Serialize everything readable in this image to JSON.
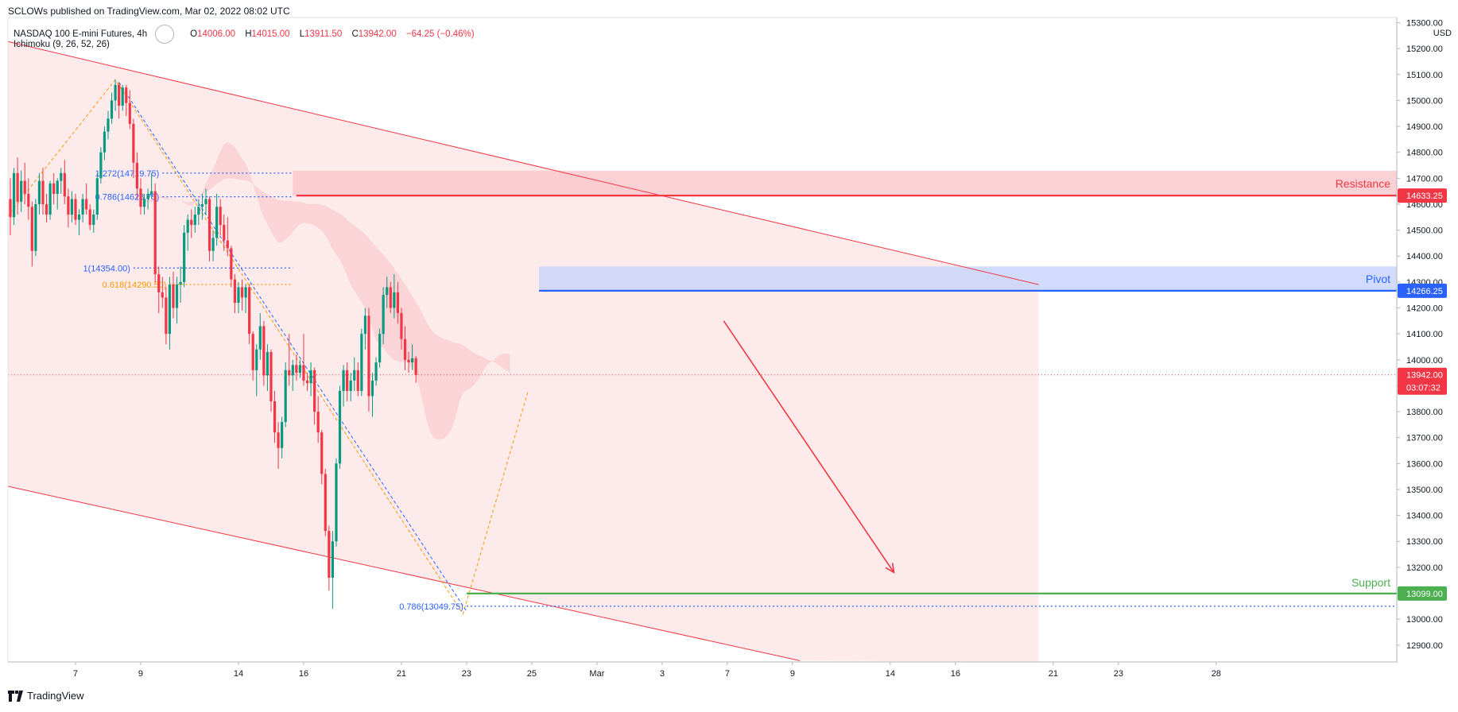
{
  "header": {
    "credit": "SCLOWs published on TradingView.com, Mar 02, 2022 08:02 UTC"
  },
  "legend": {
    "symbol": "NASDAQ 100 E-mini Futures, 4h",
    "indicator": "Ichimoku (9, 26, 52, 26)",
    "open_label": "O",
    "open": "14006.00",
    "high_label": "H",
    "high": "14015.00",
    "low_label": "L",
    "low": "13911.50",
    "close_label": "C",
    "close": "13942.00",
    "change": "−64.25 (−0.46%)"
  },
  "footer": {
    "brand": "TradingView",
    "logo_icon": "tradingview-logo-icon"
  },
  "colors": {
    "up": "#089981",
    "down": "#f23645",
    "channel": "#f23645",
    "channel_fill": "#fde7e8",
    "resistance": "#f23645",
    "pivot": "#2962ff",
    "support": "#4caf50",
    "fib_blue": "#2962ff",
    "fib_orange": "#ff9800"
  },
  "chart_data": {
    "type": "candlestick",
    "currency": "USD",
    "ylim": [
      12835,
      15320
    ],
    "y_ticks": [
      12900,
      13000,
      13100,
      13200,
      13300,
      13400,
      13500,
      13600,
      13700,
      13800,
      13900,
      14000,
      14100,
      14200,
      14300,
      14400,
      14500,
      14600,
      14700,
      14800,
      14900,
      15000,
      15100,
      15200,
      15300
    ],
    "y_tick_labels": [
      "12900.00",
      "13000.00",
      "13100.00",
      "13200.00",
      "13300.00",
      "13400.00",
      "13500.00",
      "13600.00",
      "13700.00",
      "13800.00",
      "13900.00",
      "14000.00",
      "14100.00",
      "14200.00",
      "14300.00",
      "14400.00",
      "14500.00",
      "14600.00",
      "14700.00",
      "14800.00",
      "14900.00",
      "15000.00",
      "15100.00",
      "15200.00",
      "15300.00"
    ],
    "x_ticks": [
      {
        "label": "7",
        "bar": 18
      },
      {
        "label": "9",
        "bar": 36
      },
      {
        "label": "14",
        "bar": 63
      },
      {
        "label": "16",
        "bar": 81
      },
      {
        "label": "21",
        "bar": 108
      },
      {
        "label": "23",
        "bar": 126
      },
      {
        "label": "25",
        "bar": 144
      },
      {
        "label": "Mar",
        "bar": 162
      },
      {
        "label": "3",
        "bar": 180
      },
      {
        "label": "7",
        "bar": 198
      },
      {
        "label": "9",
        "bar": 216
      },
      {
        "label": "14",
        "bar": 243
      },
      {
        "label": "16",
        "bar": 261
      },
      {
        "label": "21",
        "bar": 288
      },
      {
        "label": "23",
        "bar": 306
      },
      {
        "label": "28",
        "bar": 333
      }
    ],
    "candles": [
      [
        14620,
        14700,
        14480,
        14550
      ],
      [
        14550,
        14740,
        14520,
        14720
      ],
      [
        14720,
        14780,
        14560,
        14610
      ],
      [
        14610,
        14730,
        14570,
        14690
      ],
      [
        14690,
        14760,
        14600,
        14640
      ],
      [
        14640,
        14700,
        14540,
        14590
      ],
      [
        14590,
        14610,
        14360,
        14420
      ],
      [
        14420,
        14620,
        14400,
        14600
      ],
      [
        14600,
        14720,
        14560,
        14690
      ],
      [
        14690,
        14740,
        14560,
        14600
      ],
      [
        14600,
        14640,
        14530,
        14560
      ],
      [
        14560,
        14690,
        14540,
        14680
      ],
      [
        14680,
        14720,
        14600,
        14640
      ],
      [
        14640,
        14700,
        14580,
        14690
      ],
      [
        14690,
        14740,
        14640,
        14720
      ],
      [
        14720,
        14770,
        14600,
        14630
      ],
      [
        14630,
        14660,
        14510,
        14560
      ],
      [
        14560,
        14650,
        14530,
        14620
      ],
      [
        14620,
        14640,
        14520,
        14540
      ],
      [
        14540,
        14580,
        14480,
        14560
      ],
      [
        14560,
        14640,
        14530,
        14620
      ],
      [
        14620,
        14680,
        14560,
        14580
      ],
      [
        14580,
        14600,
        14500,
        14520
      ],
      [
        14520,
        14580,
        14490,
        14560
      ],
      [
        14560,
        14720,
        14540,
        14700
      ],
      [
        14700,
        14820,
        14680,
        14800
      ],
      [
        14800,
        14900,
        14770,
        14880
      ],
      [
        14880,
        14960,
        14850,
        14930
      ],
      [
        14930,
        15030,
        14910,
        15000
      ],
      [
        15000,
        15080,
        14960,
        15060
      ],
      [
        15060,
        15070,
        14930,
        14980
      ],
      [
        14980,
        15060,
        14960,
        15050
      ],
      [
        15050,
        15060,
        14940,
        14990
      ],
      [
        14990,
        15040,
        14890,
        14910
      ],
      [
        14910,
        14930,
        14700,
        14760
      ],
      [
        14760,
        14800,
        14620,
        14660
      ],
      [
        14660,
        14700,
        14560,
        14590
      ],
      [
        14590,
        14640,
        14560,
        14620
      ],
      [
        14620,
        14660,
        14580,
        14640
      ],
      [
        14640,
        14720,
        14620,
        14650
      ],
      [
        14650,
        14680,
        14300,
        14330
      ],
      [
        14330,
        14360,
        14180,
        14260
      ],
      [
        14260,
        14320,
        14200,
        14240
      ],
      [
        14240,
        14280,
        14060,
        14100
      ],
      [
        14100,
        14320,
        14040,
        14290
      ],
      [
        14290,
        14340,
        14160,
        14200
      ],
      [
        14200,
        14320,
        14140,
        14290
      ],
      [
        14290,
        14360,
        14220,
        14300
      ],
      [
        14300,
        14520,
        14280,
        14490
      ],
      [
        14490,
        14560,
        14420,
        14540
      ],
      [
        14540,
        14580,
        14470,
        14520
      ],
      [
        14520,
        14590,
        14490,
        14560
      ],
      [
        14560,
        14620,
        14520,
        14590
      ],
      [
        14590,
        14640,
        14540,
        14600
      ],
      [
        14600,
        14660,
        14560,
        14620
      ],
      [
        14620,
        14630,
        14380,
        14420
      ],
      [
        14420,
        14500,
        14380,
        14470
      ],
      [
        14470,
        14640,
        14440,
        14590
      ],
      [
        14590,
        14620,
        14480,
        14520
      ],
      [
        14520,
        14560,
        14420,
        14460
      ],
      [
        14460,
        14550,
        14400,
        14430
      ],
      [
        14430,
        14440,
        14280,
        14310
      ],
      [
        14310,
        14330,
        14180,
        14220
      ],
      [
        14220,
        14300,
        14180,
        14280
      ],
      [
        14280,
        14310,
        14190,
        14240
      ],
      [
        14240,
        14290,
        14180,
        14280
      ],
      [
        14280,
        14290,
        14060,
        14100
      ],
      [
        14100,
        14110,
        13920,
        13960
      ],
      [
        13960,
        14060,
        13860,
        14040
      ],
      [
        14040,
        14180,
        14000,
        14130
      ],
      [
        14130,
        14150,
        13900,
        13940
      ],
      [
        13940,
        14060,
        13880,
        14030
      ],
      [
        14030,
        14040,
        13800,
        13840
      ],
      [
        13840,
        13880,
        13680,
        13720
      ],
      [
        13720,
        13760,
        13580,
        13660
      ],
      [
        13660,
        13780,
        13620,
        13760
      ],
      [
        13760,
        13990,
        13740,
        13960
      ],
      [
        13960,
        14100,
        13900,
        13940
      ],
      [
        13940,
        14000,
        13880,
        13980
      ],
      [
        13980,
        14020,
        13920,
        13950
      ],
      [
        13950,
        14000,
        13930,
        13980
      ],
      [
        13980,
        14100,
        13900,
        13920
      ],
      [
        13920,
        13950,
        13880,
        13910
      ],
      [
        13910,
        13990,
        13860,
        13960
      ],
      [
        13960,
        13970,
        13750,
        13800
      ],
      [
        13800,
        13860,
        13680,
        13720
      ],
      [
        13720,
        13730,
        13520,
        13560
      ],
      [
        13560,
        13580,
        13320,
        13340
      ],
      [
        13340,
        13360,
        13110,
        13160
      ],
      [
        13160,
        13340,
        13040,
        13300
      ],
      [
        13300,
        13620,
        13280,
        13600
      ],
      [
        13600,
        13900,
        13580,
        13880
      ],
      [
        13880,
        13980,
        13820,
        13960
      ],
      [
        13960,
        13990,
        13840,
        13880
      ],
      [
        13880,
        13950,
        13840,
        13920
      ],
      [
        13920,
        14010,
        13880,
        13960
      ],
      [
        13960,
        13990,
        13860,
        13880
      ],
      [
        13880,
        14120,
        13860,
        14100
      ],
      [
        14100,
        14200,
        14040,
        14170
      ],
      [
        14170,
        14200,
        13800,
        13860
      ],
      [
        13860,
        13950,
        13780,
        13920
      ],
      [
        13920,
        14010,
        13900,
        13990
      ],
      [
        13990,
        14120,
        13970,
        14100
      ],
      [
        14100,
        14280,
        14060,
        14250
      ],
      [
        14250,
        14320,
        14200,
        14280
      ],
      [
        14280,
        14300,
        14180,
        14200
      ],
      [
        14200,
        14330,
        14160,
        14260
      ],
      [
        14260,
        14300,
        14140,
        14180
      ],
      [
        14180,
        14200,
        14040,
        14080
      ],
      [
        14080,
        14130,
        13960,
        14000
      ],
      [
        14000,
        14030,
        13950,
        13990
      ],
      [
        13990,
        14060,
        13960,
        14006
      ],
      [
        14006,
        14015,
        13911.5,
        13942
      ]
    ],
    "last_price": 13942.0,
    "last_price_label": "13942.00",
    "countdown": "03:07:32",
    "levels": [
      {
        "name": "Resistance",
        "value": 14633.25,
        "label": "14633.25",
        "zone": [
          14633.25,
          14729
        ]
      },
      {
        "name": "Pivot",
        "value": 14266.25,
        "label": "14266.25",
        "zone": [
          14266.25,
          14360
        ]
      },
      {
        "name": "Support",
        "value": 13099.0,
        "label": "13099.00"
      }
    ],
    "fib_levels": [
      {
        "label": "1.272(14719.75)",
        "value": 14719.75,
        "color": "blue"
      },
      {
        "label": "0.786(14628.75)",
        "value": 14628.75,
        "color": "blue"
      },
      {
        "label": "1(14354.00)",
        "value": 14354.0,
        "color": "blue"
      },
      {
        "label": "0.618(14290.50)",
        "value": 14290.5,
        "color": "orange"
      },
      {
        "label": "0.786(13049.75)",
        "value": 13049.75,
        "color": "blue"
      }
    ],
    "channel": {
      "upper": [
        [
          0,
          15225
        ],
        [
          284,
          14290
        ]
      ],
      "lower": [
        [
          0,
          13510
        ],
        [
          218,
          12840
        ]
      ],
      "fill_end_bar": 284
    },
    "forecast_arrow": {
      "from": [
        197,
        14150
      ],
      "to": [
        244,
        13180
      ]
    },
    "price_scale": "USD"
  }
}
